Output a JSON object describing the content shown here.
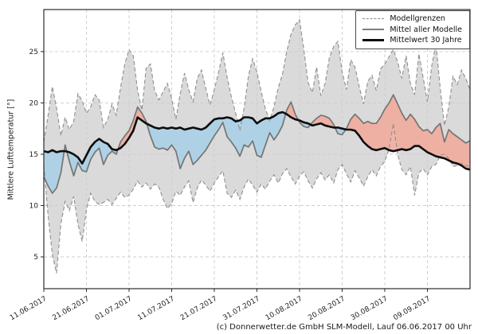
{
  "figure": {
    "background": "#ffffff"
  },
  "axes": {
    "ylabel": "Mittlere Lufttemperatur [°]",
    "yticks": [
      5,
      10,
      15,
      20,
      25
    ],
    "xtick_labels": [
      "11.06.2017",
      "21.06.2017",
      "01.07.2017",
      "11.07.2017",
      "21.07.2017",
      "31.07.2017",
      "10.08.2017",
      "20.08.2017",
      "30.08.2017",
      "09.09.2017"
    ]
  },
  "legend": {
    "items": [
      {
        "label": "Modellgrenzen",
        "swatch": "dashed-gray-line"
      },
      {
        "label": "Mittel aller Modelle",
        "swatch": "solid-gray-line"
      },
      {
        "label": "Mittelwert 30 Jahre",
        "swatch": "thick-black-line"
      }
    ]
  },
  "caption": "(c) Donnerwetter.de GmbH SLM-Modell, Lauf 06.06.2017 00 Uhr",
  "colors": {
    "band_fill": "#cdcdcd",
    "blue_fill": "#a9cfe5",
    "pink_fill": "#efab9c",
    "bound_line": "#8f8f8f",
    "mean_line": "#757575",
    "climate_line": "#0d0d0d",
    "grid": "#cccccc",
    "axis": "#2b2b2b"
  },
  "chart_data": {
    "type": "line",
    "title": "",
    "xlabel": "",
    "ylabel": "Mittlere Lufttemperatur [°]",
    "x_unit": "days since 11.06.2017 (1 value per day)",
    "x_start_date": "11.06.2017",
    "x_step_days": 1,
    "xtick_days": [
      0,
      10,
      20,
      30,
      40,
      50,
      60,
      70,
      80,
      90
    ],
    "xtick_labels": [
      "11.06.2017",
      "21.06.2017",
      "01.07.2017",
      "11.07.2017",
      "21.07.2017",
      "31.07.2017",
      "10.08.2017",
      "20.08.2017",
      "30.08.2017",
      "09.09.2017"
    ],
    "yticks": [
      5,
      10,
      15,
      20,
      25
    ],
    "ylim": [
      1.9,
      29.1
    ],
    "grid": true,
    "legend_position": "upper right",
    "fills": [
      "gray band between Modellgrenzen upper and lower",
      "blue where Mittel aller Modelle < Mittelwert 30 Jahre",
      "pink where Mittel aller Modelle > Mittelwert 30 Jahre"
    ],
    "series": [
      {
        "name": "Modellgrenzen (obere Grenze)",
        "style": "dashed-gray",
        "values": [
          16.2,
          18.8,
          21.6,
          19.5,
          16.8,
          18.6,
          17.4,
          18.2,
          20.9,
          20.2,
          19.0,
          19.6,
          20.8,
          20.3,
          17.6,
          18.4,
          19.9,
          18.8,
          21.5,
          23.8,
          25.2,
          24.6,
          21.2,
          19.3,
          23.4,
          23.8,
          21.2,
          20.3,
          21.1,
          21.9,
          20.4,
          18.4,
          20.9,
          22.9,
          21.3,
          20.1,
          22.4,
          23.2,
          21.4,
          19.8,
          21.3,
          23.0,
          24.9,
          22.5,
          20.6,
          19.0,
          17.3,
          19.5,
          22.6,
          24.3,
          23.0,
          21.1,
          19.4,
          18.3,
          19.6,
          21.5,
          22.8,
          25.0,
          26.7,
          27.6,
          28.1,
          25.2,
          22.0,
          21.0,
          23.5,
          20.7,
          21.9,
          24.4,
          25.5,
          26.0,
          23.0,
          21.3,
          24.2,
          23.5,
          21.6,
          19.9,
          22.1,
          22.7,
          21.2,
          23.3,
          23.8,
          24.5,
          25.2,
          24.0,
          22.4,
          24.6,
          21.9,
          20.8,
          24.8,
          22.5,
          20.1,
          23.6,
          25.8,
          21.5,
          17.8,
          19.6,
          22.6,
          21.8,
          23.2,
          22.4,
          21.3
        ]
      },
      {
        "name": "Modellgrenzen (untere Grenze)",
        "style": "dashed-gray",
        "values": [
          13.9,
          9.0,
          5.2,
          3.4,
          8.2,
          10.4,
          9.5,
          10.9,
          8.2,
          6.5,
          9.6,
          11.2,
          10.4,
          10.1,
          10.3,
          10.6,
          10.1,
          10.7,
          11.3,
          10.8,
          11.0,
          11.6,
          12.4,
          11.8,
          12.2,
          11.6,
          12.1,
          11.8,
          10.6,
          9.7,
          10.2,
          11.4,
          11.0,
          11.8,
          12.4,
          10.3,
          11.7,
          12.5,
          12.0,
          11.4,
          12.2,
          12.8,
          13.4,
          11.2,
          10.8,
          11.5,
          10.6,
          11.8,
          12.6,
          12.0,
          11.3,
          12.1,
          11.6,
          12.4,
          13.0,
          12.2,
          13.1,
          13.6,
          12.8,
          12.1,
          12.9,
          13.3,
          12.4,
          11.7,
          12.6,
          13.2,
          12.5,
          13.0,
          12.2,
          13.5,
          14.0,
          13.1,
          12.3,
          13.4,
          12.7,
          11.9,
          12.8,
          13.5,
          12.9,
          13.8,
          14.3,
          15.5,
          18.0,
          15.0,
          13.5,
          13.0,
          13.8,
          11.0,
          13.2,
          13.6,
          13.0,
          13.8,
          14.0,
          14.9,
          15.0,
          14.6,
          13.8,
          13.9,
          14.1,
          13.9,
          13.8
        ]
      },
      {
        "name": "Mittel aller Modelle",
        "style": "solid-gray",
        "values": [
          12.8,
          11.9,
          11.2,
          11.7,
          13.2,
          15.9,
          14.3,
          12.9,
          14.2,
          13.4,
          13.3,
          14.5,
          15.2,
          15.6,
          14.0,
          14.9,
          15.3,
          15.0,
          16.2,
          16.8,
          17.3,
          18.3,
          19.6,
          19.0,
          18.2,
          16.8,
          15.7,
          15.5,
          15.6,
          15.4,
          15.9,
          15.3,
          13.6,
          14.6,
          15.3,
          14.0,
          14.4,
          14.9,
          15.4,
          16.1,
          16.8,
          17.4,
          18.1,
          16.7,
          16.2,
          15.6,
          14.8,
          15.9,
          15.7,
          16.3,
          14.9,
          14.7,
          15.9,
          17.1,
          16.4,
          17.0,
          17.8,
          19.3,
          20.1,
          18.9,
          18.1,
          17.7,
          17.6,
          18.1,
          18.5,
          18.8,
          18.7,
          18.5,
          17.9,
          17.0,
          16.9,
          17.5,
          18.4,
          18.9,
          18.5,
          18.0,
          18.2,
          18.0,
          18.0,
          18.6,
          19.4,
          20.0,
          20.8,
          19.9,
          19.0,
          18.3,
          18.9,
          18.4,
          17.7,
          17.3,
          17.4,
          17.0,
          17.6,
          18.0,
          16.2,
          17.4,
          17.0,
          16.7,
          16.4,
          16.1,
          16.3
        ]
      },
      {
        "name": "Mittelwert 30 Jahre",
        "style": "thick-black",
        "values": [
          15.3,
          15.2,
          15.4,
          15.2,
          15.3,
          15.3,
          15.2,
          15.0,
          14.7,
          14.1,
          14.9,
          15.7,
          16.2,
          16.5,
          16.2,
          16.0,
          15.5,
          15.4,
          15.6,
          16.0,
          16.6,
          17.3,
          18.6,
          18.3,
          18.0,
          17.8,
          17.6,
          17.5,
          17.6,
          17.5,
          17.6,
          17.5,
          17.6,
          17.4,
          17.5,
          17.6,
          17.5,
          17.4,
          17.6,
          18.0,
          18.4,
          18.5,
          18.5,
          18.6,
          18.5,
          18.2,
          18.3,
          18.6,
          18.6,
          18.5,
          18.0,
          18.3,
          18.5,
          18.5,
          18.7,
          19.0,
          19.1,
          18.9,
          18.6,
          18.4,
          18.3,
          18.1,
          18.0,
          17.8,
          17.9,
          18.0,
          17.8,
          17.7,
          17.6,
          17.6,
          17.5,
          17.4,
          17.4,
          17.3,
          16.8,
          16.2,
          15.8,
          15.5,
          15.4,
          15.5,
          15.6,
          15.4,
          15.3,
          15.4,
          15.5,
          15.4,
          15.5,
          15.8,
          15.8,
          15.5,
          15.2,
          15.0,
          14.8,
          14.7,
          14.6,
          14.4,
          14.2,
          14.1,
          13.9,
          13.6,
          13.5
        ]
      }
    ]
  }
}
